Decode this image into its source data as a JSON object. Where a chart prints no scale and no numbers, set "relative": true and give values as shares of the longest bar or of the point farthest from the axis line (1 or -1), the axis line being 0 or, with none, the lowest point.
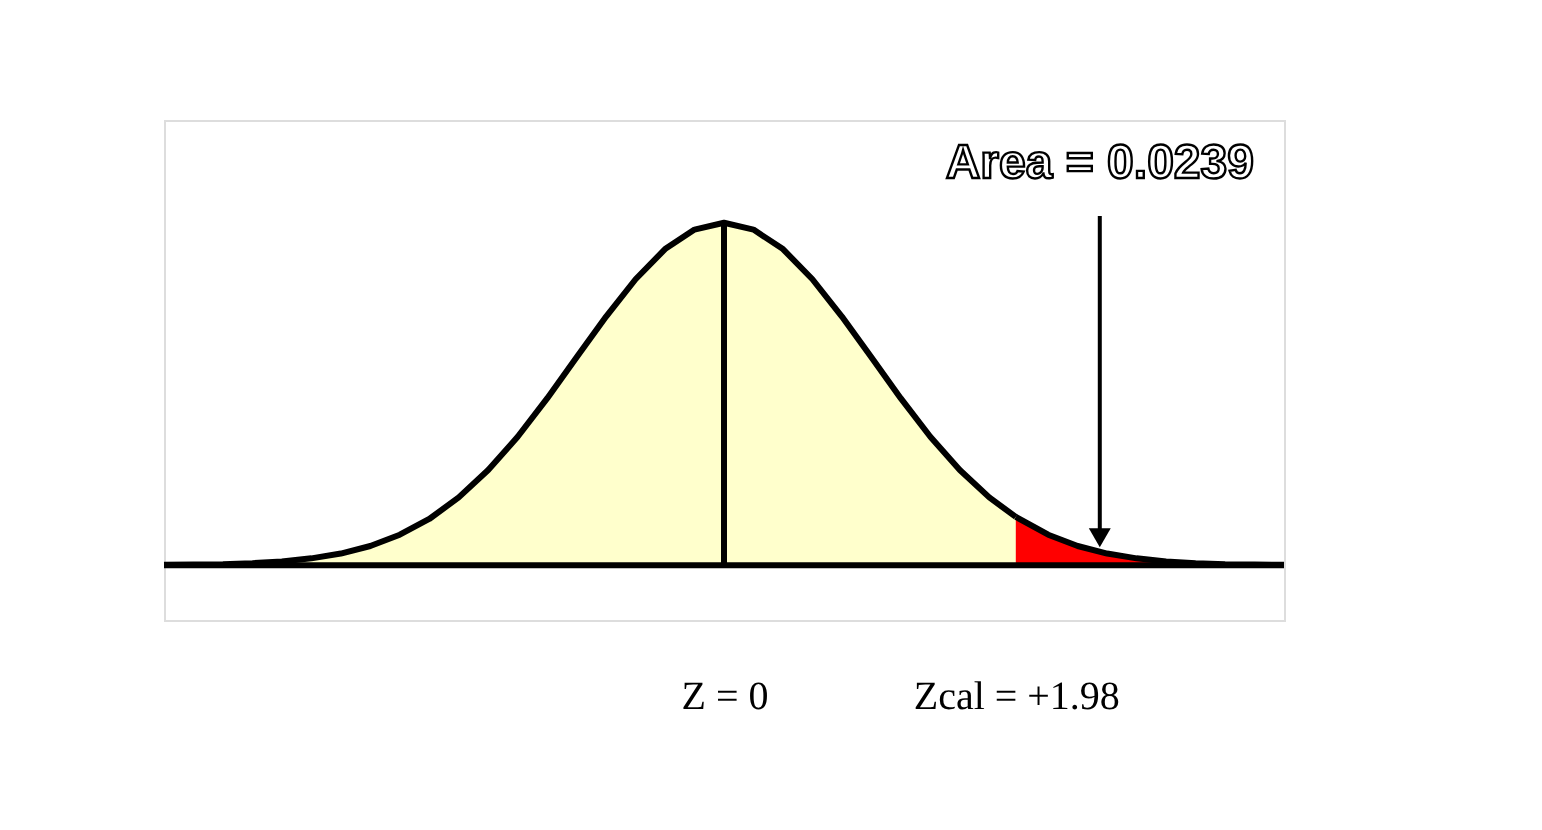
{
  "chart_data": {
    "type": "area",
    "relative": true,
    "xlim": [
      -3.8,
      3.8
    ],
    "xticks": [
      {
        "value": 0,
        "label": "Z = 0"
      },
      {
        "value": 1.98,
        "label": "Zcal = +1.98"
      }
    ],
    "series": [
      {
        "color": "#ffffcc",
        "x": [
          -3.8,
          -3.6,
          -3.4,
          -3.2,
          -3.0,
          -2.8,
          -2.6,
          -2.4,
          -2.2,
          -2.0,
          -1.8,
          -1.6,
          -1.4,
          -1.2,
          -1.0,
          -0.8,
          -0.6,
          -0.4,
          -0.2,
          0,
          0.2,
          0.4,
          0.6,
          0.8,
          1.0,
          1.2,
          1.4,
          1.6,
          1.8,
          1.98
        ],
        "values": [
          0.001,
          0.002,
          0.003,
          0.006,
          0.011,
          0.02,
          0.034,
          0.056,
          0.089,
          0.135,
          0.198,
          0.278,
          0.375,
          0.487,
          0.607,
          0.726,
          0.835,
          0.923,
          0.98,
          1.0,
          0.98,
          0.923,
          0.835,
          0.726,
          0.607,
          0.487,
          0.375,
          0.278,
          0.198,
          0.141
        ]
      },
      {
        "color": "#ff0000",
        "x": [
          1.98,
          2.2,
          2.4,
          2.6,
          2.8,
          3.0,
          3.2,
          3.4,
          3.6,
          3.8
        ],
        "values": [
          0.141,
          0.089,
          0.056,
          0.034,
          0.02,
          0.011,
          0.006,
          0.003,
          0.002,
          0.001
        ]
      }
    ],
    "ref_lines": [
      {
        "axis": "x",
        "value": 0,
        "color": "#000000"
      }
    ],
    "annotations": [
      {
        "text": "Area = 0.0239",
        "x": 2.55,
        "y": 0.08
      }
    ]
  }
}
